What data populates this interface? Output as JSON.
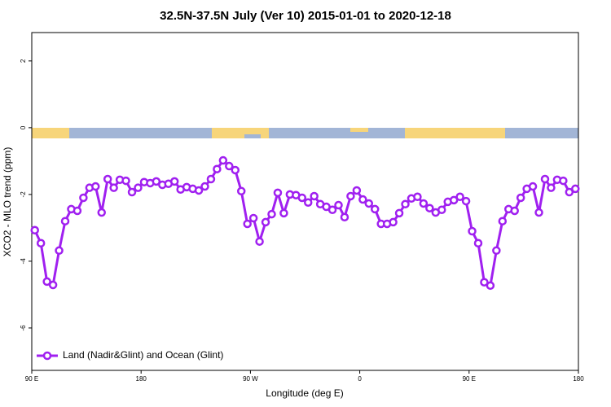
{
  "chart_data": {
    "type": "line",
    "title": "32.5N-37.5N July (Ver 10)   2015-01-01 to 2020-12-18",
    "x_label": "Longitude (deg E)",
    "y_label": "XCO2 - MLO trend (ppm)",
    "xlim": [
      90,
      540
    ],
    "ylim": [
      -7.27,
      2.85
    ],
    "xticks": [
      {
        "value": 90,
        "label": "90 E"
      },
      180,
      {
        "value": 270,
        "label": "90 W"
      },
      {
        "value": 360,
        "label": "0"
      },
      {
        "value": 450,
        "label": "90 E"
      },
      {
        "value": 540,
        "label": "180"
      }
    ],
    "yticks": [
      -6,
      -4,
      -2,
      0,
      2
    ],
    "legend": "bottom-left",
    "x": [
      92.5,
      97.5,
      102.5,
      107.5,
      112.5,
      117.5,
      122.5,
      127.5,
      132.5,
      137.5,
      142.5,
      147.5,
      152.5,
      157.5,
      162.5,
      167.5,
      172.5,
      177.5,
      182.5,
      187.5,
      192.5,
      197.5,
      202.5,
      207.5,
      212.5,
      217.5,
      222.5,
      227.5,
      232.5,
      237.5,
      242.5,
      247.5,
      252.5,
      257.5,
      262.5,
      267.5,
      272.5,
      277.5,
      282.5,
      287.5,
      292.5,
      297.5,
      302.5,
      307.5,
      312.5,
      317.5,
      322.5,
      327.5,
      332.5,
      337.5,
      342.5,
      347.5,
      352.5,
      357.5,
      362.5,
      367.5,
      372.5,
      377.5,
      382.5,
      387.5,
      392.5,
      397.5,
      402.5,
      407.5,
      412.5,
      417.5,
      422.5,
      427.5,
      432.5,
      437.5,
      442.5,
      447.5,
      452.5,
      457.5,
      462.5,
      467.5,
      472.5,
      477.5,
      482.5,
      487.5,
      492.5,
      497.5,
      502.5,
      507.5,
      512.5,
      517.5,
      522.5,
      527.5,
      532.5,
      537.5
    ],
    "series": [
      {
        "name": "Land (Nadir&Glint) and Ocean (Glint)",
        "color": "#a020f0",
        "values": [
          -3.07,
          -3.46,
          -4.61,
          -4.71,
          -3.68,
          -2.8,
          -2.44,
          -2.49,
          -2.1,
          -1.8,
          -1.76,
          -2.54,
          -1.54,
          -1.8,
          -1.56,
          -1.59,
          -1.93,
          -1.8,
          -1.63,
          -1.66,
          -1.61,
          -1.71,
          -1.68,
          -1.61,
          -1.85,
          -1.78,
          -1.83,
          -1.88,
          -1.76,
          -1.54,
          -1.24,
          -0.98,
          -1.15,
          -1.27,
          -1.9,
          -2.88,
          -2.71,
          -3.41,
          -2.83,
          -2.59,
          -1.95,
          -2.56,
          -2.0,
          -2.02,
          -2.1,
          -2.24,
          -2.05,
          -2.29,
          -2.37,
          -2.46,
          -2.32,
          -2.68,
          -2.05,
          -1.88,
          -2.15,
          -2.27,
          -2.44,
          -2.88,
          -2.88,
          -2.83,
          -2.56,
          -2.29,
          -2.12,
          -2.07,
          -2.27,
          -2.41,
          -2.54,
          -2.46,
          -2.22,
          -2.17,
          -2.07,
          -2.2,
          -3.1,
          -3.46,
          -4.63,
          -4.73,
          -3.68,
          -2.8,
          -2.44,
          -2.49,
          -2.1,
          -1.83,
          -1.76,
          -2.54,
          -1.54,
          -1.8,
          -1.56,
          -1.59,
          -1.93,
          -1.83
        ]
      }
    ]
  }
}
